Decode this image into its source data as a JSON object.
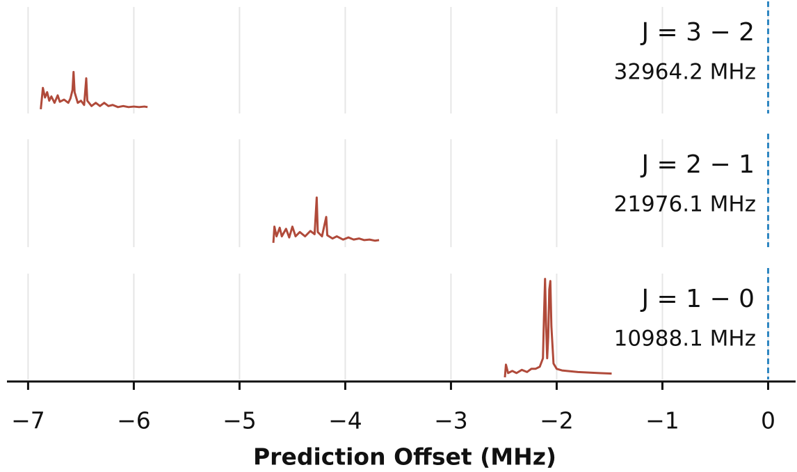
{
  "chart_data": [
    {
      "type": "line",
      "title": "J = 3 − 2",
      "subtitle": "32964.2 MHz",
      "x": [
        -6.88,
        -6.86,
        -6.84,
        -6.82,
        -6.8,
        -6.78,
        -6.75,
        -6.72,
        -6.7,
        -6.66,
        -6.62,
        -6.6,
        -6.58,
        -6.57,
        -6.56,
        -6.53,
        -6.5,
        -6.47,
        -6.45,
        -6.44,
        -6.4,
        -6.36,
        -6.32,
        -6.28,
        -6.24,
        -6.2,
        -6.15,
        -6.1,
        -6.05,
        -6.0,
        -5.95,
        -5.9,
        -5.87
      ],
      "series": [
        {
          "color": "#b04a3a",
          "values": [
            0.04,
            0.24,
            0.15,
            0.2,
            0.12,
            0.16,
            0.1,
            0.17,
            0.11,
            0.13,
            0.1,
            0.14,
            0.22,
            0.39,
            0.2,
            0.1,
            0.12,
            0.08,
            0.33,
            0.12,
            0.07,
            0.1,
            0.07,
            0.1,
            0.07,
            0.08,
            0.06,
            0.07,
            0.06,
            0.065,
            0.06,
            0.065,
            0.06
          ]
        }
      ],
      "xlim": [
        -7.2,
        0.26
      ],
      "ylim": [
        0,
        1
      ],
      "xticks": [
        -7,
        -6,
        -5,
        -4,
        -3,
        -2,
        -1,
        0
      ],
      "grid": true,
      "reference_line": {
        "x": 0,
        "color": "#2e86c1",
        "style": "dashed"
      }
    },
    {
      "type": "line",
      "title": "J = 2 − 1",
      "subtitle": "21976.1 MHz",
      "x": [
        -4.68,
        -4.67,
        -4.65,
        -4.62,
        -4.6,
        -4.56,
        -4.53,
        -4.5,
        -4.47,
        -4.43,
        -4.38,
        -4.33,
        -4.29,
        -4.27,
        -4.26,
        -4.22,
        -4.18,
        -4.17,
        -4.12,
        -4.08,
        -4.02,
        -3.97,
        -3.92,
        -3.87,
        -3.82,
        -3.77,
        -3.72,
        -3.68
      ],
      "series": [
        {
          "color": "#b04a3a",
          "values": [
            0.04,
            0.19,
            0.1,
            0.18,
            0.1,
            0.17,
            0.09,
            0.19,
            0.1,
            0.14,
            0.1,
            0.15,
            0.12,
            0.46,
            0.14,
            0.1,
            0.28,
            0.11,
            0.08,
            0.1,
            0.07,
            0.09,
            0.07,
            0.08,
            0.065,
            0.07,
            0.06,
            0.065
          ]
        }
      ],
      "xlim": [
        -7.2,
        0.26
      ],
      "ylim": [
        0,
        1
      ],
      "xticks": [
        -7,
        -6,
        -5,
        -4,
        -3,
        -2,
        -1,
        0
      ],
      "grid": true,
      "reference_line": {
        "x": 0,
        "color": "#2e86c1",
        "style": "dashed"
      }
    },
    {
      "type": "line",
      "title": "J = 1 − 0",
      "subtitle": "10988.1 MHz",
      "x": [
        -2.49,
        -2.48,
        -2.46,
        -2.42,
        -2.38,
        -2.33,
        -2.28,
        -2.24,
        -2.2,
        -2.16,
        -2.13,
        -2.12,
        -2.11,
        -2.1,
        -2.09,
        -2.08,
        -2.07,
        -2.06,
        -2.05,
        -2.03,
        -2.0,
        -1.95,
        -1.9,
        -1.85,
        -1.8,
        -1.7,
        -1.6,
        -1.48
      ],
      "series": [
        {
          "color": "#b04a3a",
          "values": [
            0.02,
            0.14,
            0.06,
            0.08,
            0.06,
            0.09,
            0.07,
            0.1,
            0.1,
            0.12,
            0.2,
            0.6,
            0.95,
            0.5,
            0.2,
            0.4,
            0.85,
            0.93,
            0.5,
            0.15,
            0.1,
            0.085,
            0.08,
            0.075,
            0.07,
            0.065,
            0.06,
            0.055
          ]
        }
      ],
      "xlim": [
        -7.2,
        0.26
      ],
      "ylim": [
        0,
        1
      ],
      "xticks": [
        {
          "value": -7,
          "label": "−7"
        },
        {
          "value": -6,
          "label": "−6"
        },
        {
          "value": -5,
          "label": "−5"
        },
        {
          "value": -4,
          "label": "−4"
        },
        {
          "value": -3,
          "label": "−3"
        },
        {
          "value": -2,
          "label": "−2"
        },
        {
          "value": -1,
          "label": "−1"
        },
        0
      ],
      "grid": true,
      "xlabel": "Prediction Offset (MHz)",
      "reference_line": {
        "x": 0,
        "color": "#2e86c1",
        "style": "dashed"
      }
    }
  ]
}
